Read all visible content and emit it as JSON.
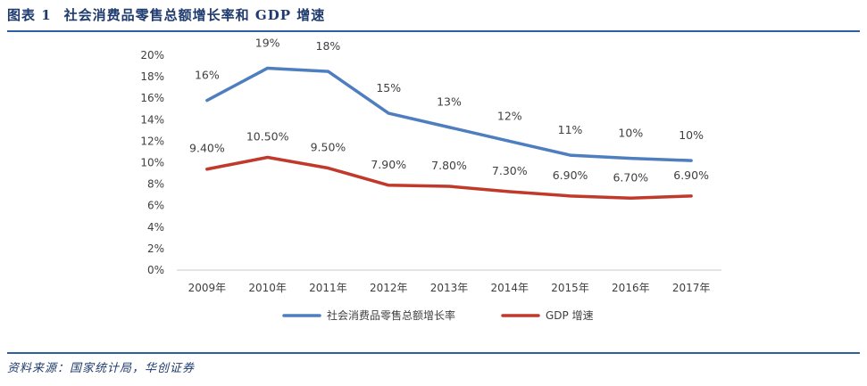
{
  "figure": {
    "number": "图表 1",
    "title": "社会消费品零售总额增长率和 GDP 增速",
    "source": "资料来源：国家统计局，华创证券"
  },
  "colors": {
    "retail_line": "#4e7ec0",
    "gdp_line": "#c0392b",
    "heading": "#1f3b6e",
    "rule": "#2e5fa3"
  },
  "chart_data": {
    "type": "line",
    "categories": [
      "2009年",
      "2010年",
      "2011年",
      "2012年",
      "2013年",
      "2014年",
      "2015年",
      "2016年",
      "2017年"
    ],
    "y_ticks": [
      "0%",
      "2%",
      "4%",
      "6%",
      "8%",
      "10%",
      "12%",
      "14%",
      "16%",
      "18%",
      "20%"
    ],
    "ylim": [
      0,
      20
    ],
    "legend_position": "bottom",
    "series": [
      {
        "name": "社会消费品零售总额增长率",
        "values": [
          15.8,
          18.8,
          18.5,
          14.6,
          13.3,
          12.0,
          10.7,
          10.4,
          10.2
        ],
        "labels": [
          "16%",
          "19%",
          "18%",
          "15%",
          "13%",
          "12%",
          "11%",
          "10%",
          "10%"
        ]
      },
      {
        "name": "GDP 增速",
        "values": [
          9.4,
          10.5,
          9.5,
          7.9,
          7.8,
          7.3,
          6.9,
          6.7,
          6.9
        ],
        "labels": [
          "9.40%",
          "10.50%",
          "9.50%",
          "7.90%",
          "7.80%",
          "7.30%",
          "6.90%",
          "6.70%",
          "6.90%"
        ]
      }
    ]
  }
}
